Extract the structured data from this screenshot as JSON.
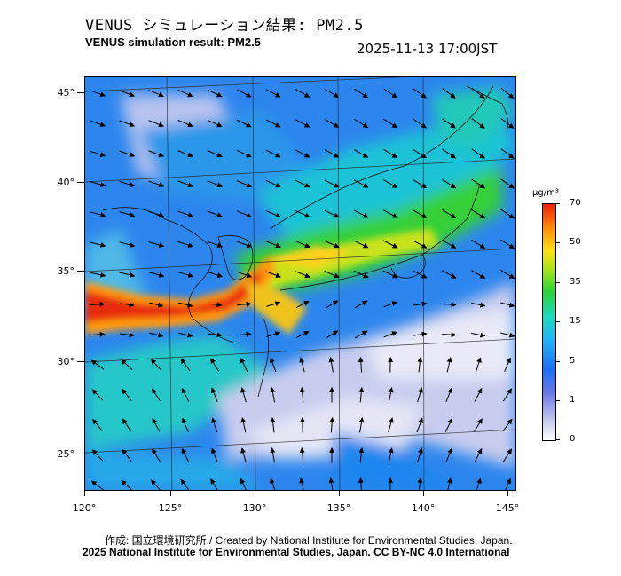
{
  "title_jp": "VENUS シミュレーション結果: PM2.5",
  "title_en": "VENUS simulation result: PM2.5",
  "timestamp": "2025-11-13 17:00JST",
  "lat_labels": [
    "45°",
    "40°",
    "35°",
    "30°",
    "25°"
  ],
  "lon_labels": [
    "120°",
    "125°",
    "130°",
    "135°",
    "140°",
    "145°"
  ],
  "colorbar": {
    "unit": "μg/m³",
    "labels": [
      "70",
      "50",
      "35",
      "15",
      "5",
      "1",
      "0"
    ]
  },
  "credit_line1": "作成: 国立環境研究所 / Created by National Institute for Environmental Studies, Japan.",
  "credit_line2": "2025 National Institute for Environmental Studies, Japan. CC BY-NC 4.0 International"
}
